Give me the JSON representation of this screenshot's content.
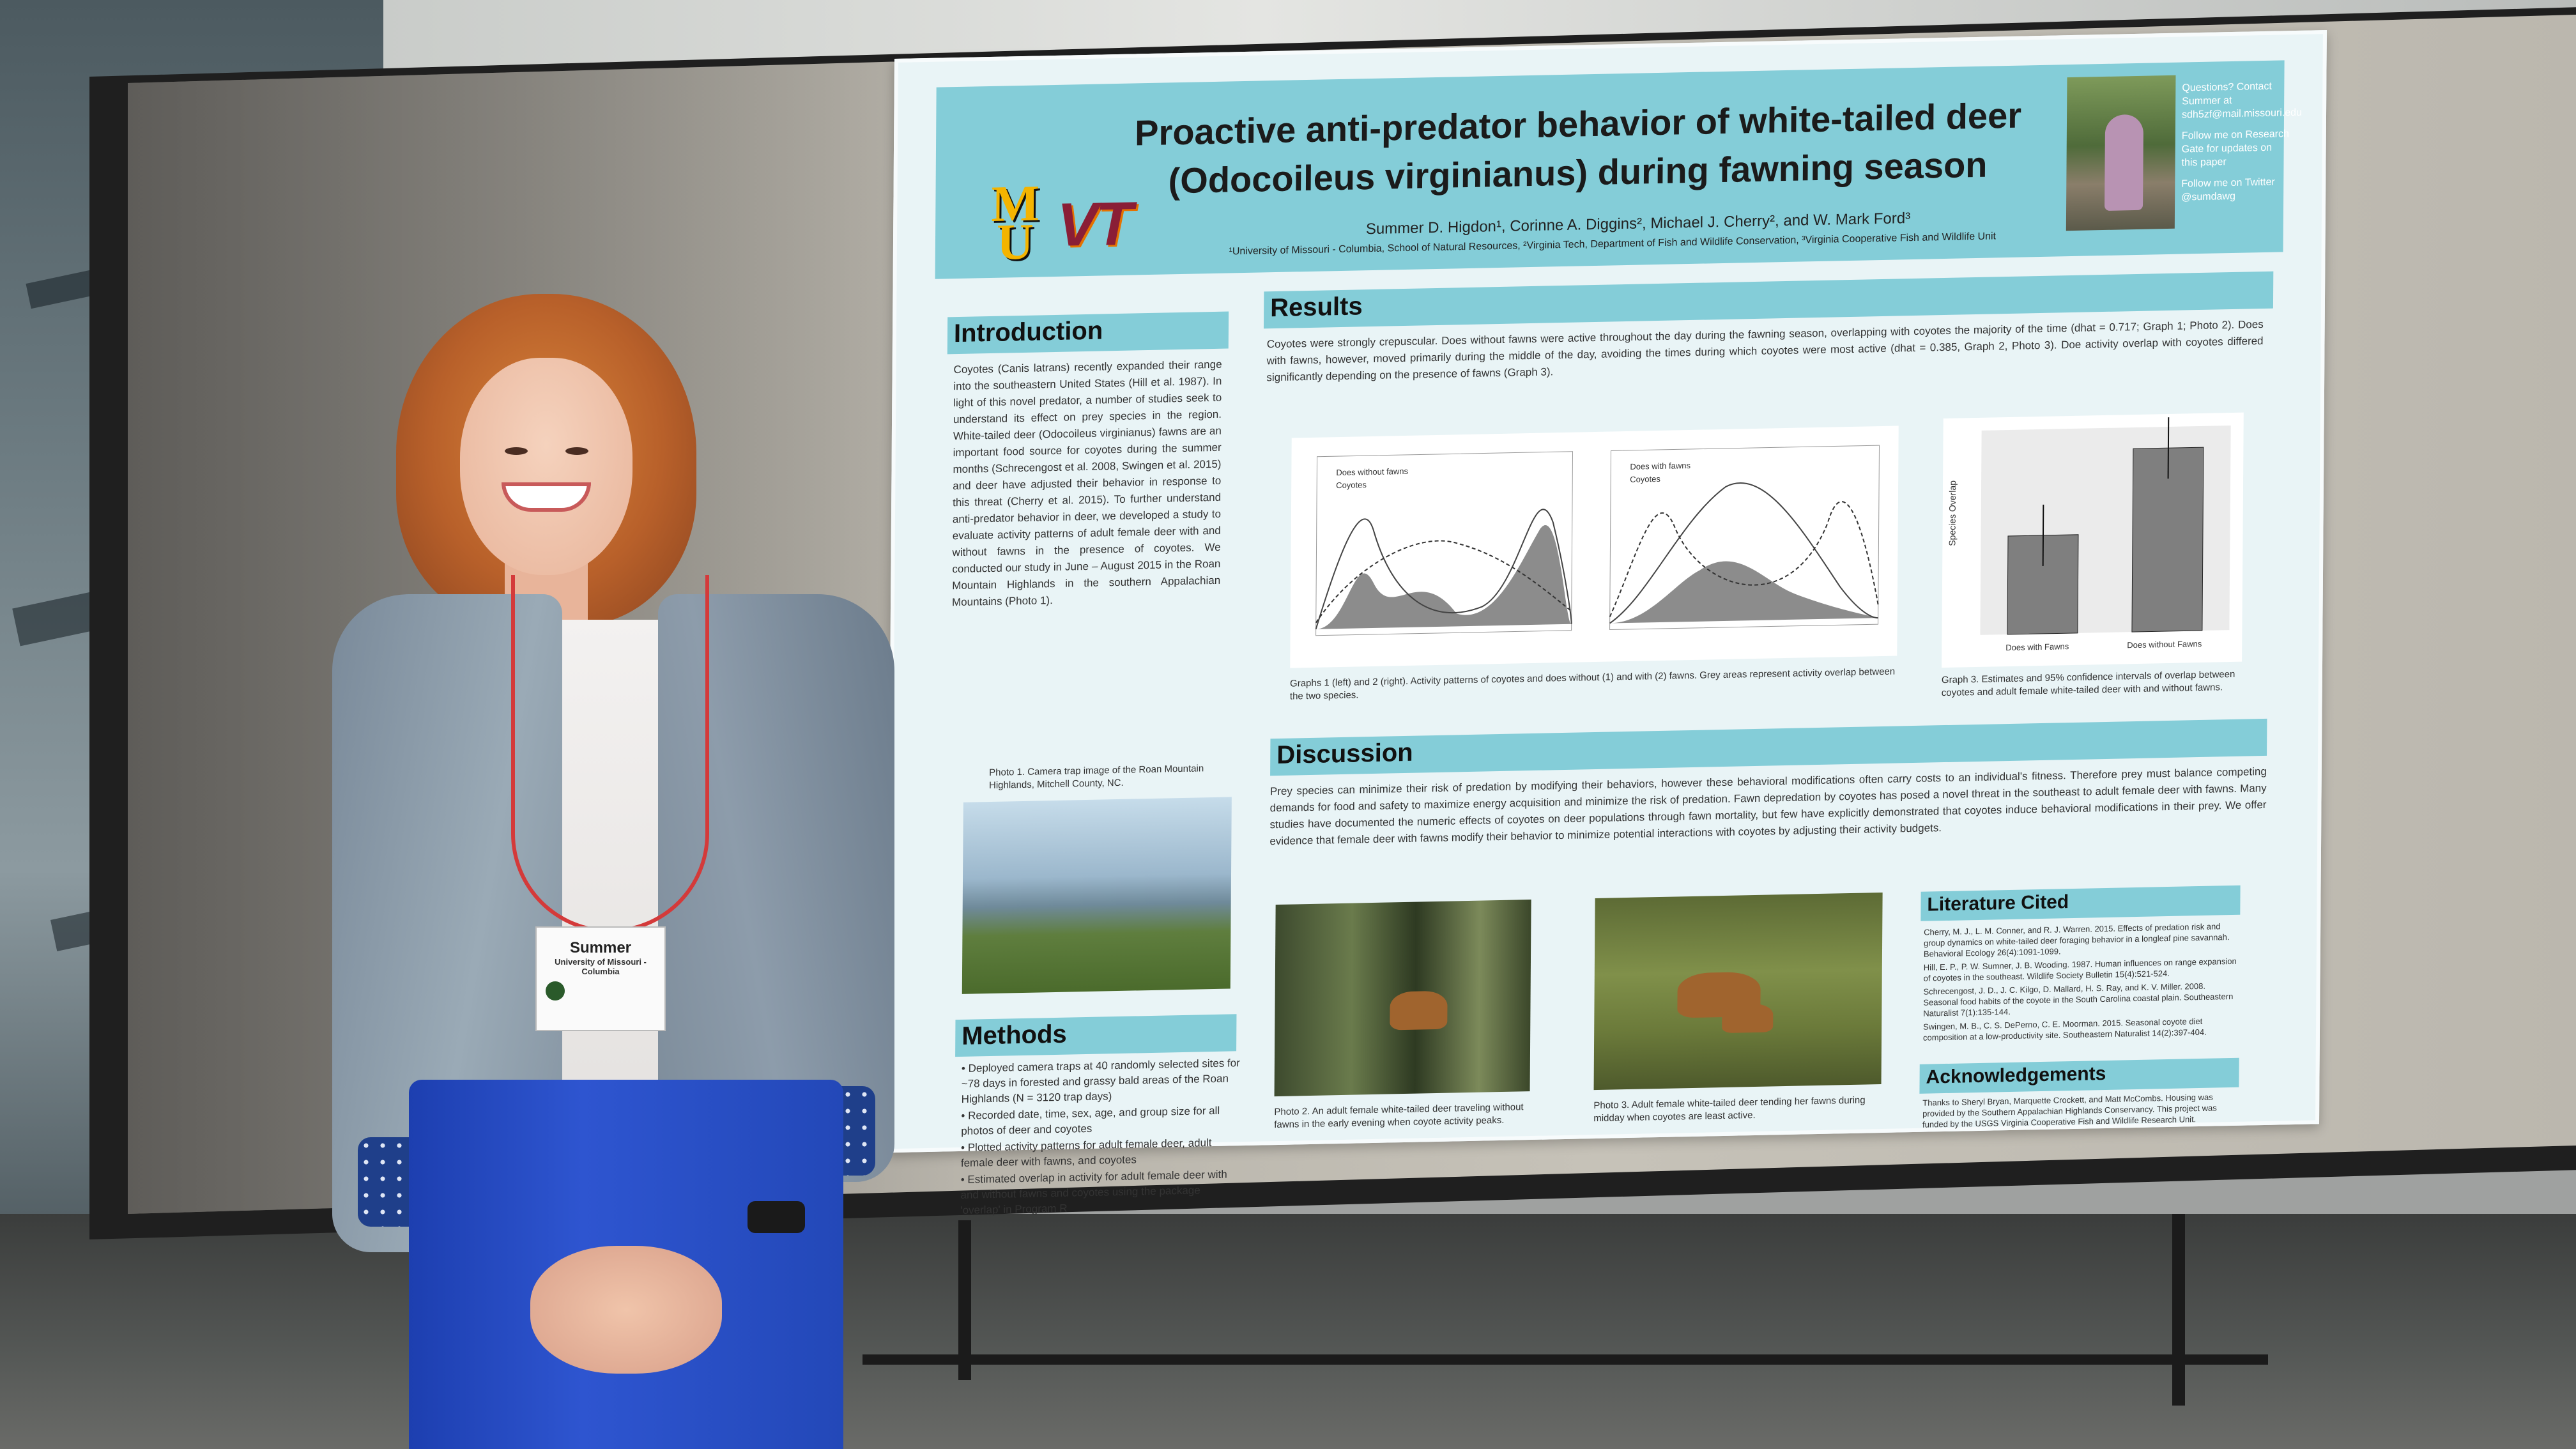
{
  "poster": {
    "title_line1": "Proactive anti-predator behavior of white-tailed deer",
    "title_line2": "(Odocoileus virginianus) during fawning season",
    "authors": "Summer D. Higdon¹, Corinne A. Diggins², Michael J. Cherry², and W. Mark Ford³",
    "affiliations": "¹University of Missouri - Columbia, School of Natural Resources, ²Virginia Tech, Department of Fish and Wildlife Conservation, ³Virginia Cooperative Fish and Wildlife Unit",
    "logo_mu": "M U",
    "logo_vt": "VT",
    "contact": {
      "questions": "Questions? Contact Summer at sdh5zf@mail.missouri.edu",
      "research_gate": "Follow me on Research Gate for updates on this paper",
      "twitter": "Follow me on Twitter @sumdawg"
    },
    "introduction": {
      "heading": "Introduction",
      "text": "Coyotes (Canis latrans) recently expanded their range into the southeastern United States (Hill et al. 1987). In light of this novel predator, a number of studies seek to understand its effect on prey species in the region. White-tailed deer (Odocoileus virginianus) fawns are an important food source for coyotes during the summer months (Schrecengost et al. 2008, Swingen et al. 2015) and deer have adjusted their behavior in response to this threat (Cherry et al. 2015). To further understand anti-predator behavior in deer, we developed a study to evaluate activity patterns of adult female deer with and without fawns in the presence of coyotes. We conducted our study in June – August 2015 in the Roan Mountain Highlands in the southern Appalachian Mountains (Photo 1).",
      "photo_caption": "Photo 1. Camera trap image of the Roan Mountain Highlands, Mitchell County, NC."
    },
    "methods": {
      "heading": "Methods",
      "bullets": [
        "• Deployed camera traps at 40 randomly selected sites for ~78 days in forested and grassy bald areas of the Roan Highlands (N = 3120 trap days)",
        "• Recorded date, time, sex, age, and group size for all photos of deer and coyotes",
        "• Plotted activity patterns for adult female deer, adult female deer with fawns, and coyotes",
        "• Estimated overlap in activity for adult female deer with and without fawns and coyotes using the package 'overlap' in Program R"
      ]
    },
    "results": {
      "heading": "Results",
      "text": "Coyotes were strongly crepuscular. Does without fawns were active throughout the day during the fawning season, overlapping with coyotes the majority of the time (dhat = 0.717; Graph 1; Photo 2). Does with fawns, however, moved primarily during the middle of the day, avoiding the times during which coyotes were most active (dhat = 0.385, Graph 2, Photo 3). Doe activity overlap with coyotes differed significantly depending on the presence of fawns (Graph 3).",
      "graph1_legend": [
        "Does without fawns",
        "Coyotes"
      ],
      "graph2_legend": [
        "Does with fawns",
        "Coyotes"
      ],
      "graphs_caption": "Graphs 1 (left) and 2 (right). Activity patterns of coyotes and does without (1) and with (2) fawns. Grey areas represent activity overlap between the two species.",
      "graph3_caption": "Graph 3. Estimates and 95% confidence intervals of overlap between coyotes and adult female white-tailed deer with and without fawns.",
      "graph3_ylabel": "Species Overlap",
      "graph3_categories": [
        "Does with Fawns",
        "Does without Fawns"
      ]
    },
    "discussion": {
      "heading": "Discussion",
      "text": "Prey species can minimize their risk of predation by modifying their behaviors, however these behavioral modifications often carry costs to an individual's fitness. Therefore prey must balance competing demands for food and safety to maximize energy acquisition and minimize the risk of predation. Fawn depredation by coyotes has posed a novel threat in the southeast to adult female deer with fawns. Many studies have documented the numeric effects of coyotes on deer populations through fawn mortality, but few have explicitly demonstrated that coyotes induce behavioral modifications in their prey. We offer evidence that female deer with fawns modify their behavior to minimize potential interactions with coyotes by adjusting their activity budgets.",
      "photo2_caption": "Photo 2. An adult female white-tailed deer traveling without fawns in the early evening when coyote activity peaks.",
      "photo3_caption": "Photo 3. Adult female white-tailed deer tending her fawns during midday when coyotes are least active."
    },
    "literature": {
      "heading": "Literature Cited",
      "entries": [
        "Cherry, M. J., L. M. Conner, and R. J. Warren. 2015. Effects of predation risk and group dynamics on white-tailed deer foraging behavior in a longleaf pine savannah. Behavioral Ecology 26(4):1091-1099.",
        "Hill, E. P., P. W. Sumner, J. B. Wooding. 1987. Human influences on range expansion of coyotes in the southeast. Wildlife Society Bulletin 15(4):521-524.",
        "Schrecengost, J. D., J. C. Kilgo, D. Mallard, H. S. Ray, and K. V. Miller. 2008. Seasonal food habits of the coyote in the South Carolina coastal plain. Southeastern Naturalist 7(1):135-144.",
        "Swingen, M. B., C. S. DePerno, C. E. Moorman. 2015. Seasonal coyote diet composition at a low-productivity site. Southeastern Naturalist 14(2):397-404."
      ]
    },
    "acknowledgements": {
      "heading": "Acknowledgements",
      "text": "Thanks to Sheryl Bryan, Marquette Crockett, and Matt McCombs. Housing was provided by the Southern Appalachian Highlands Conservancy. This project was funded by the USGS Virginia Cooperative Fish and Wildlife Research Unit."
    }
  },
  "badge": {
    "name": "Summer",
    "affiliation": "University of Missouri - Columbia"
  },
  "chart_data": {
    "type": "bar",
    "categories": [
      "Does with Fawns",
      "Does without Fawns"
    ],
    "values": [
      0.385,
      0.717
    ],
    "ylabel": "Species Overlap",
    "ylim": [
      0,
      0.8
    ]
  }
}
